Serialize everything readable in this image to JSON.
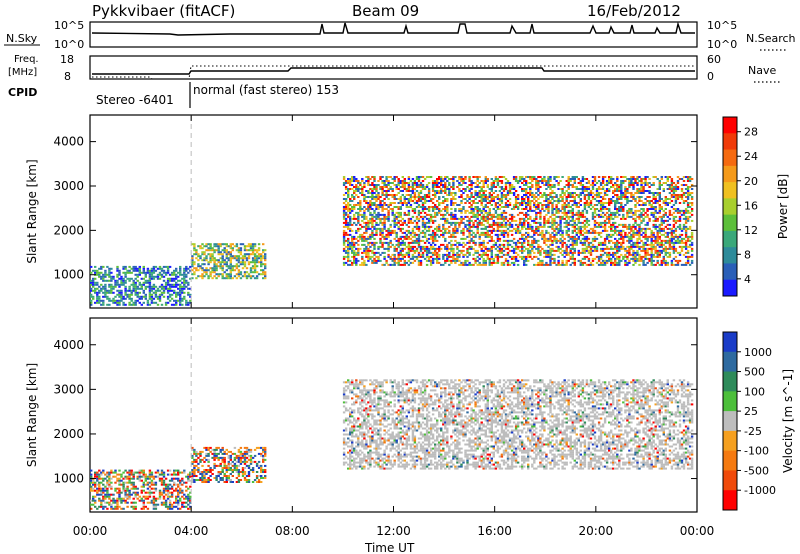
{
  "header": {
    "title": "Pykkvibaer (fitACF)",
    "beam": "Beam 09",
    "date": "16/Feb/2012"
  },
  "top_panels": {
    "nsky": {
      "label": "N.Sky",
      "left_ticks": [
        "10^5",
        "10^0"
      ],
      "right_ticks": [
        "10^5",
        "10^0"
      ],
      "right_label": "N.Search"
    },
    "freq": {
      "label_line1": "Freq.",
      "label_line2": "[MHz]",
      "left_ticks": [
        "18",
        "8"
      ],
      "right_ticks": [
        "60",
        "0"
      ],
      "right_label": "Nave"
    },
    "cpid": {
      "label": "CPID",
      "segments": [
        "Stereo -6401",
        "normal (fast stereo) 153"
      ]
    }
  },
  "chart_data": [
    {
      "type": "heatmap",
      "name": "power",
      "ylabel": "Slant Range [km]",
      "xlabel": "Time UT",
      "x_ticks": [
        "00:00",
        "04:00",
        "08:00",
        "12:00",
        "16:00",
        "20:00",
        "00:00"
      ],
      "y_ticks": [
        1000,
        2000,
        3000,
        4000
      ],
      "ylim": [
        250,
        4600
      ],
      "colorbar": {
        "label": "Power [dB]",
        "ticks": [
          4,
          8,
          12,
          16,
          20,
          24,
          28
        ],
        "colors": [
          "#1a1aff",
          "#2a5fb8",
          "#2e8b9a",
          "#3aa87a",
          "#5cbf3a",
          "#a8cf2e",
          "#f0c020",
          "#f59a1a",
          "#f56a10",
          "#f03a08",
          "#ff0000"
        ]
      },
      "echo_regions": [
        {
          "t_start": 0.0,
          "t_end": 4.0,
          "r_start": 300,
          "r_end": 1200,
          "level": "low"
        },
        {
          "t_start": 4.0,
          "t_end": 6.9,
          "r_start": 900,
          "r_end": 1700,
          "level": "mid"
        },
        {
          "t_start": 10.0,
          "t_end": 23.8,
          "r_start": 1200,
          "r_end": 3200,
          "level": "high"
        }
      ]
    },
    {
      "type": "heatmap",
      "name": "velocity",
      "ylabel": "Slant Range [km]",
      "xlabel": "Time UT",
      "x_ticks": [
        "00:00",
        "04:00",
        "08:00",
        "12:00",
        "16:00",
        "20:00",
        "00:00"
      ],
      "y_ticks": [
        1000,
        2000,
        3000,
        4000
      ],
      "ylim": [
        250,
        4600
      ],
      "colorbar": {
        "label": "Velocity [m s^-1]",
        "ticks": [
          1000,
          500,
          100,
          25,
          -25,
          -100,
          -500,
          -1000
        ],
        "colors": [
          "#1a3cc8",
          "#2e6aa0",
          "#2e8b5a",
          "#4cbf3a",
          "#bdbdbd",
          "#f5a020",
          "#f57a10",
          "#f04a0a",
          "#ff0000"
        ]
      },
      "echo_regions": [
        {
          "t_start": 0.0,
          "t_end": 4.0,
          "r_start": 300,
          "r_end": 1200,
          "level": "mixed"
        },
        {
          "t_start": 4.0,
          "t_end": 6.9,
          "r_start": 900,
          "r_end": 1700,
          "level": "mixed"
        },
        {
          "t_start": 10.0,
          "t_end": 23.8,
          "r_start": 1200,
          "r_end": 3200,
          "level": "gray"
        }
      ]
    }
  ]
}
